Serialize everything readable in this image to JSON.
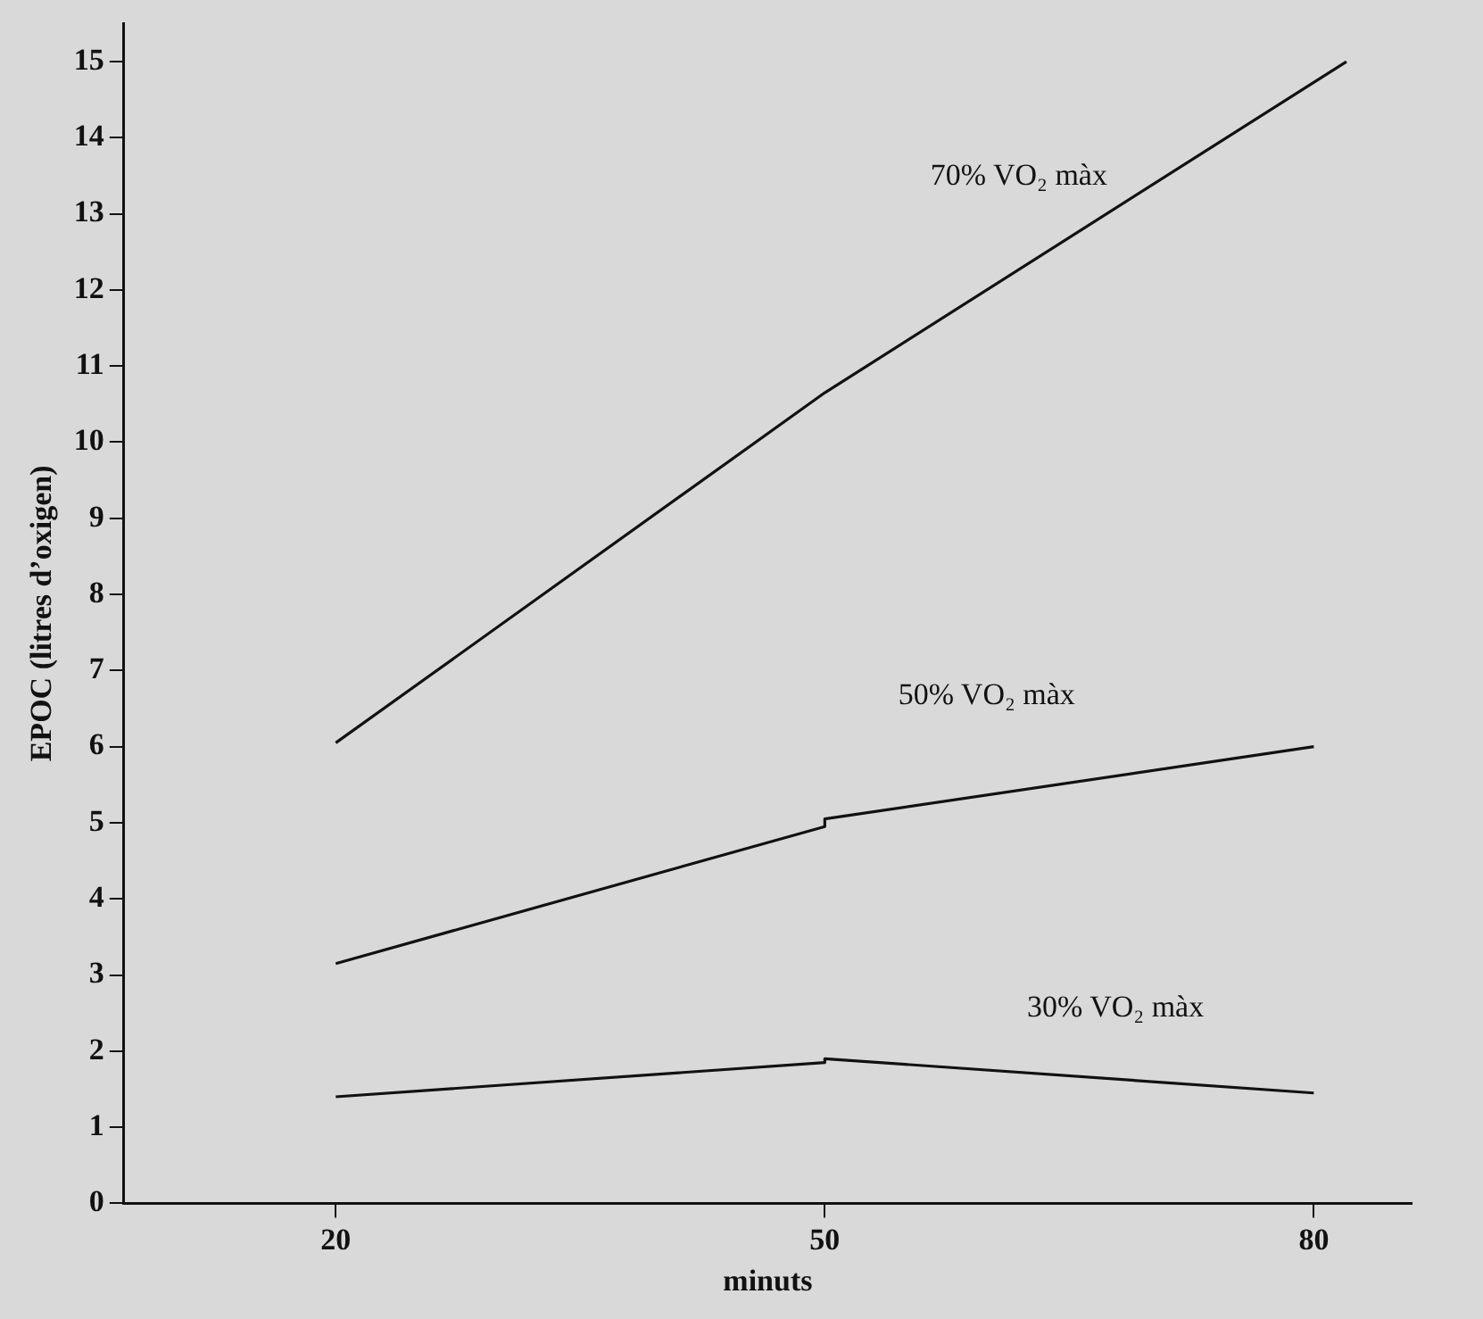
{
  "chart_data": {
    "type": "line",
    "xlabel": "minuts",
    "ylabel": "EPOC (litres d’oxigen)",
    "xlim": [
      7,
      86
    ],
    "xticks": [
      20,
      50,
      80
    ],
    "ylim": [
      0,
      15.5
    ],
    "yticks": [
      0,
      1,
      2,
      3,
      4,
      5,
      6,
      7,
      8,
      9,
      10,
      11,
      12,
      13,
      14,
      15
    ],
    "grid": false,
    "legend": false,
    "marker": "none",
    "line_style": "solid",
    "series": [
      {
        "name": "70% VO₂ màx",
        "color": "#111111",
        "x": [
          20,
          50,
          82
        ],
        "values": [
          6.05,
          10.65,
          15
        ]
      },
      {
        "name": "50% VO₂ màx",
        "color": "#111111",
        "x": [
          20,
          50,
          50,
          80
        ],
        "values": [
          3.15,
          4.95,
          5.05,
          6.0
        ]
      },
      {
        "name": "30% VO₂ màx",
        "color": "#111111",
        "x": [
          20,
          50,
          50,
          80
        ],
        "values": [
          1.4,
          1.85,
          1.9,
          1.45
        ]
      }
    ]
  }
}
